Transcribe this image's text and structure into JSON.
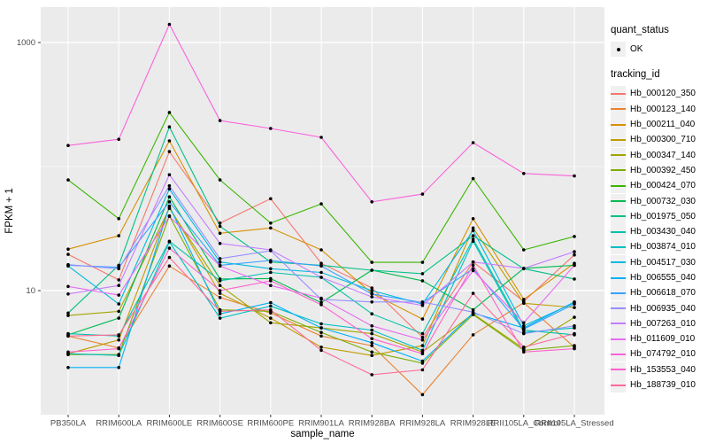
{
  "figure": {
    "y_axis_title": "FPKM + 1",
    "x_axis_title": "sample_name"
  },
  "legend": {
    "quant_status_title": "quant_status",
    "quant_status_items": [
      {
        "label": "OK",
        "marker": "black-point"
      }
    ],
    "tracking_id_title": "tracking_id"
  },
  "colors": {
    "panel_bg": "#EBEBEB",
    "grid": "#FFFFFF",
    "tick_text": "#4D4D4D",
    "axis_title_text": "#000000",
    "legend_key_bg": "#F0F0F0",
    "point": "#000000",
    "background": "#FFFFFF"
  },
  "chart_data": {
    "type": "line",
    "title": "",
    "xlabel": "sample_name",
    "ylabel": "FPKM + 1",
    "x_scale": "categorical",
    "y_scale": "log10",
    "ylim": [
      1,
      1900
    ],
    "yticks": [
      10,
      1000
    ],
    "ytick_labels": [
      "10",
      "1000"
    ],
    "minor_gridlines": [
      100
    ],
    "grid": true,
    "legend_position": "right",
    "point_marker": "black-dot",
    "categories": [
      "PB350LA",
      "RRIM600LA",
      "RRIM600LE",
      "RRIM600SE",
      "RRIM600PE",
      "RRIM901LA",
      "RRIM928BA",
      "RRIM928LA",
      "RRIM928LE",
      "RRII105LA_Control",
      "RRII105LA_Stressed"
    ],
    "series": [
      {
        "name": "Hb_000120_350",
        "color": "#F8766D",
        "values": [
          19.6,
          12.2,
          132,
          35,
          55,
          16.6,
          10.5,
          4.2,
          17,
          8.2,
          19.4
        ]
      },
      {
        "name": "Hb_000123_140",
        "color": "#EA8331",
        "values": [
          4.3,
          3.45,
          15.8,
          8.8,
          6.6,
          4.3,
          3.6,
          1.45,
          4.4,
          8.0,
          3.5
        ]
      },
      {
        "name": "Hb_000211_040",
        "color": "#D89000",
        "values": [
          21.6,
          27.7,
          161,
          29,
          32,
          21.3,
          9.5,
          5.9,
          38,
          8.5,
          16.6
        ]
      },
      {
        "name": "Hb_000300_710",
        "color": "#C09B00",
        "values": [
          3.1,
          4.0,
          47,
          9.5,
          6.0,
          3.5,
          3.0,
          3.6,
          32,
          7.9,
          7.3
        ]
      },
      {
        "name": "Hb_000347_140",
        "color": "#A3A500",
        "values": [
          6.3,
          6.8,
          46,
          11,
          5.5,
          5.0,
          4.5,
          3.2,
          6.5,
          3.4,
          6.1
        ]
      },
      {
        "name": "Hb_000392_450",
        "color": "#7CAE00",
        "values": [
          3.05,
          3.05,
          40,
          7.0,
          6.8,
          4.6,
          3.2,
          2.6,
          6.4,
          3.3,
          3.6
        ]
      },
      {
        "name": "Hb_000424_070",
        "color": "#39B600",
        "values": [
          78,
          38,
          273,
          78,
          35,
          50,
          16.9,
          16.9,
          80,
          21.3,
          27.3
        ]
      },
      {
        "name": "Hb_000732_030",
        "color": "#00BB4E",
        "values": [
          4.4,
          6.0,
          57,
          12.4,
          12.5,
          8.0,
          14.6,
          12.0,
          7.0,
          15.1,
          16.0
        ]
      },
      {
        "name": "Hb_001975_050",
        "color": "#00C087",
        "values": [
          6.6,
          16,
          209,
          33,
          17,
          16,
          14.6,
          13.7,
          27.7,
          15,
          12.4
        ]
      },
      {
        "name": "Hb_003430_040",
        "color": "#00C1AB",
        "values": [
          4.5,
          4.3,
          25,
          12,
          14,
          12.8,
          6.5,
          4.5,
          26,
          4.8,
          4.4
        ]
      },
      {
        "name": "Hb_003874_010",
        "color": "#00BFC4",
        "values": [
          3.1,
          3.0,
          24.7,
          6.0,
          7.5,
          5.4,
          4.8,
          3.3,
          25,
          4.6,
          5.0
        ]
      },
      {
        "name": "Hb_004517_030",
        "color": "#00BAE0",
        "values": [
          15.8,
          7.8,
          66,
          17,
          15,
          14,
          10,
          7.8,
          30.5,
          5.2,
          8.0
        ]
      },
      {
        "name": "Hb_006555_040",
        "color": "#00B0F6",
        "values": [
          2.4,
          2.4,
          48,
          6.5,
          8.0,
          5.0,
          3.8,
          2.7,
          6.6,
          5.0,
          8.1
        ]
      },
      {
        "name": "Hb_006618_070",
        "color": "#35A2FF",
        "values": [
          16,
          15.4,
          52,
          16,
          17.5,
          15.8,
          9.4,
          8.0,
          15,
          4.9,
          7.8
        ]
      },
      {
        "name": "Hb_006935_040",
        "color": "#9590FF",
        "values": [
          16.2,
          15,
          70,
          18.1,
          21,
          8.5,
          8.1,
          8.1,
          6.7,
          4.5,
          5.2
        ]
      },
      {
        "name": "Hb_007263_010",
        "color": "#C77CFF",
        "values": [
          9.4,
          11,
          86,
          24,
          21.3,
          12.8,
          8.9,
          7.6,
          17,
          15.1,
          20.6
        ]
      },
      {
        "name": "Hb_011609_010",
        "color": "#E76BF3",
        "values": [
          10.8,
          9.2,
          39.7,
          15.8,
          11,
          8.7,
          5.2,
          4.0,
          14.5,
          5.5,
          16
        ]
      },
      {
        "name": "Hb_074792_010",
        "color": "#FA62DB",
        "values": [
          148,
          166,
          1400,
          235,
          203,
          172,
          52,
          60,
          156,
          88,
          84
        ]
      },
      {
        "name": "Hb_153553_040",
        "color": "#FF61CC",
        "values": [
          3.2,
          3.4,
          22,
          10,
          12,
          7.7,
          4.1,
          3.1,
          16,
          3.2,
          3.4
        ]
      },
      {
        "name": "Hb_188739_010",
        "color": "#FF6A98",
        "values": [
          4.3,
          4.4,
          18.5,
          6.8,
          7.0,
          3.3,
          2.1,
          2.3,
          9.5,
          3.5,
          4.5
        ]
      }
    ]
  }
}
